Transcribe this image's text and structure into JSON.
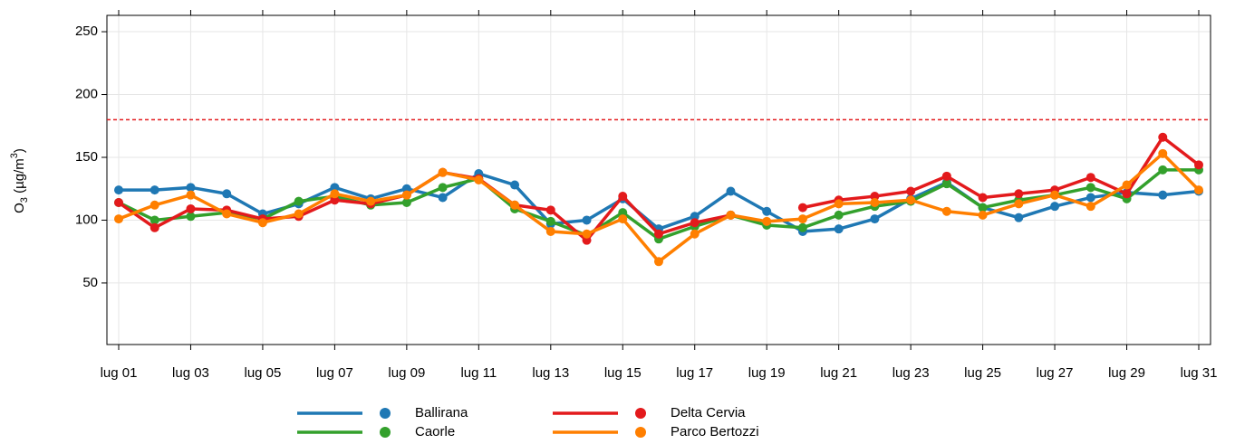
{
  "chart_data": {
    "type": "line",
    "y_label": [
      "O",
      "3",
      " (µg/m",
      "3",
      ")"
    ],
    "categories": [
      "lug 01",
      null,
      "lug 03",
      null,
      "lug 05",
      null,
      "lug 07",
      null,
      "lug 09",
      null,
      "lug 11",
      null,
      "lug 13",
      null,
      "lug 15",
      null,
      "lug 17",
      null,
      "lug 19",
      null,
      "lug 21",
      null,
      "lug 23",
      null,
      "lug 25",
      null,
      "lug 27",
      null,
      "lug 29",
      null,
      "lug 31"
    ],
    "series": [
      {
        "name": "Ballirana",
        "color": "#1f78b4",
        "values": [
          124,
          124,
          126,
          121,
          105,
          113,
          126,
          117,
          125,
          118,
          137,
          128,
          97,
          100,
          117,
          93,
          103,
          123,
          107,
          91,
          93,
          101,
          117,
          130,
          110,
          102,
          111,
          118,
          122,
          120,
          123
        ]
      },
      {
        "name": "Caorle",
        "color": "#33a02c",
        "values": [
          114,
          100,
          103,
          106,
          101,
          115,
          119,
          112,
          114,
          126,
          133,
          109,
          99,
          88,
          106,
          85,
          95,
          104,
          96,
          94,
          104,
          111,
          115,
          129,
          110,
          116,
          120,
          126,
          117,
          140,
          140
        ]
      },
      {
        "name": "Delta Cervia",
        "color": "#e31a1c",
        "values": [
          114,
          94,
          109,
          108,
          101,
          103,
          116,
          113,
          120,
          138,
          133,
          112,
          108,
          84,
          119,
          89,
          98,
          104,
          null,
          110,
          116,
          119,
          123,
          135,
          118,
          121,
          124,
          134,
          121,
          166,
          144
        ]
      },
      {
        "name": "Parco Bertozzi",
        "color": "#ff7f00",
        "values": [
          101,
          112,
          120,
          105,
          98,
          105,
          121,
          115,
          120,
          138,
          132,
          112,
          91,
          89,
          101,
          67,
          89,
          104,
          99,
          101,
          113,
          114,
          116,
          107,
          104,
          113,
          120,
          111,
          128,
          153,
          124
        ]
      }
    ],
    "threshold": 180,
    "threshold_color": "#e31a1c",
    "ylim": [
      1,
      263
    ],
    "yticks": [
      50,
      100,
      150,
      200,
      250
    ],
    "grid": true
  }
}
